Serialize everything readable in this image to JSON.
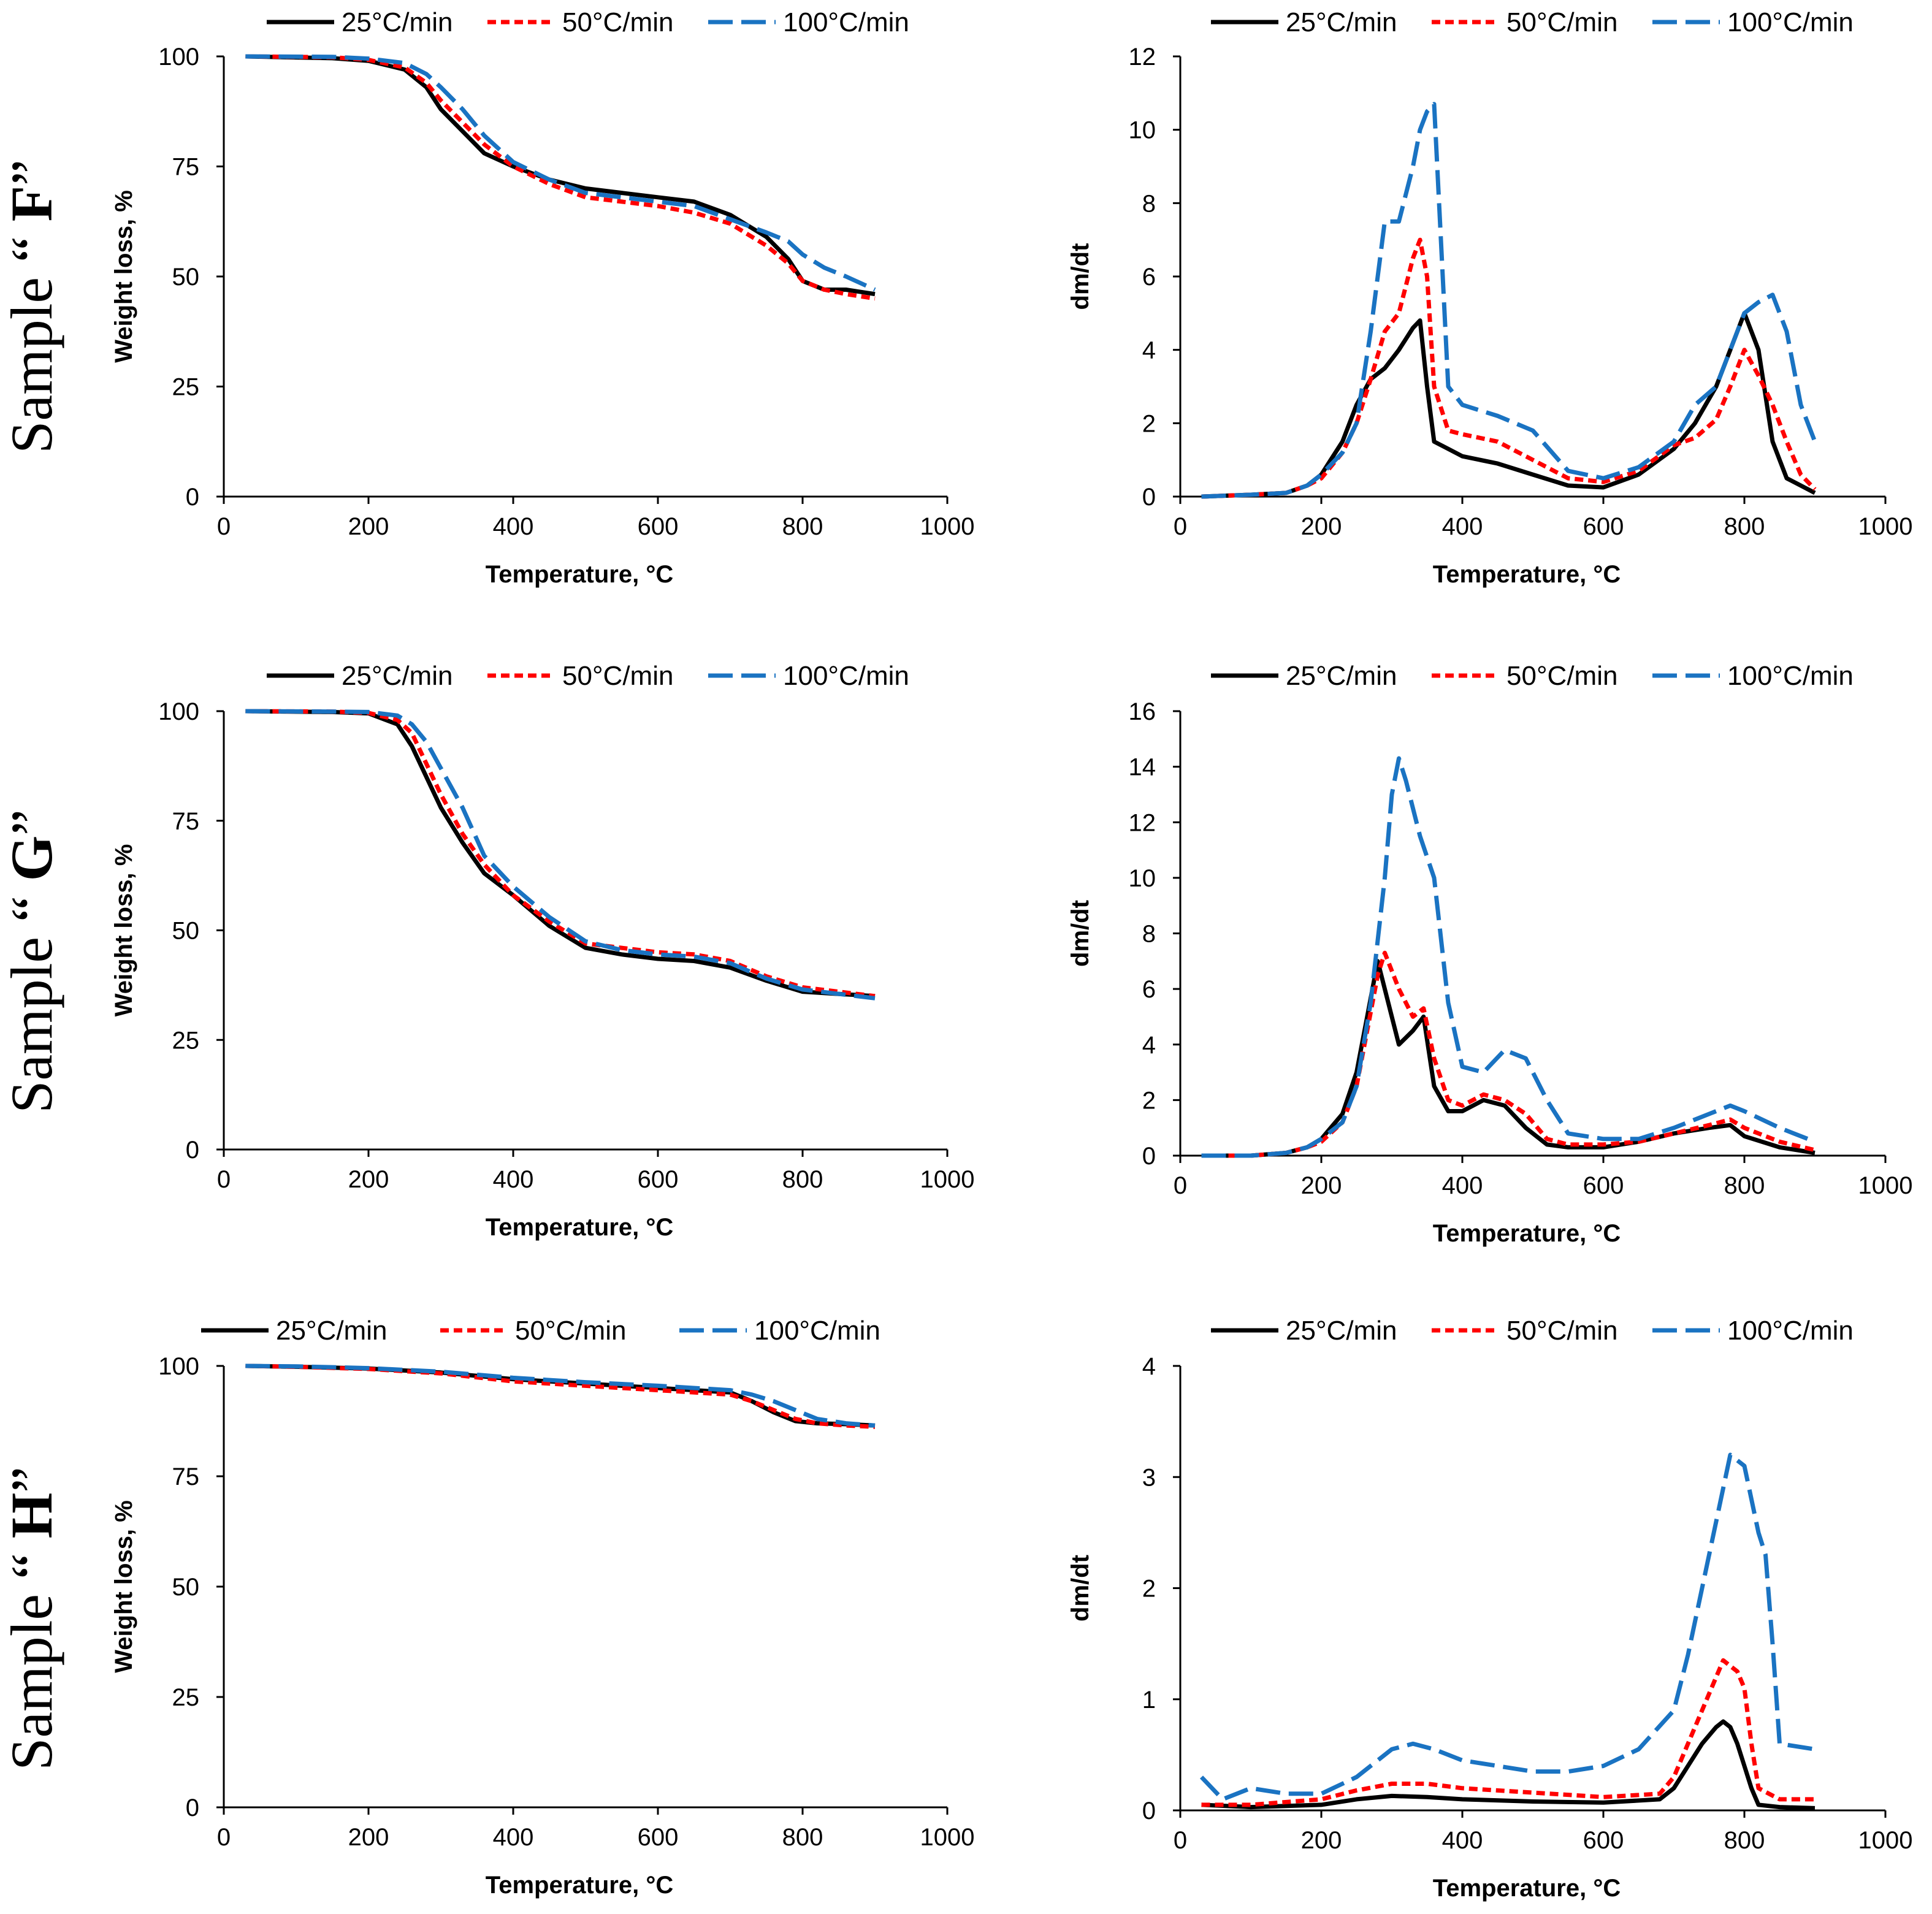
{
  "series_meta": [
    {
      "name": "25°C/min",
      "color": "#000000",
      "style": "solid"
    },
    {
      "name": "50°C/min",
      "color": "#ff0000",
      "style": "short-dash"
    },
    {
      "name": "100°C/min",
      "color": "#1a73c2",
      "style": "long-dash"
    }
  ],
  "rows": [
    {
      "sample_label_prefix": "Sample",
      "sample_label_quote": "“",
      "sample_letter": "F",
      "sample_label_suffix": "”"
    },
    {
      "sample_label_prefix": "Sample",
      "sample_label_quote": "“",
      "sample_letter": "G",
      "sample_label_suffix": "”"
    },
    {
      "sample_label_prefix": "Sample",
      "sample_label_quote": "“",
      "sample_letter": "H",
      "sample_label_suffix": "”"
    }
  ],
  "chart_data": [
    {
      "id": "F-tga",
      "type": "line",
      "title": "",
      "xlabel": "Temperature, °C",
      "ylabel": "Weight loss, %",
      "xlim": [
        0,
        1000
      ],
      "ylim": [
        0,
        100
      ],
      "xticks": [
        0,
        200,
        400,
        600,
        800,
        1000
      ],
      "yticks": [
        0,
        25,
        50,
        75,
        100
      ],
      "legend": "top",
      "series": [
        {
          "name": "25°C/min",
          "x": [
            30,
            150,
            200,
            250,
            280,
            300,
            330,
            360,
            400,
            450,
            500,
            550,
            600,
            650,
            700,
            750,
            780,
            800,
            830,
            860,
            900
          ],
          "y": [
            100,
            99.6,
            99,
            97,
            93,
            88,
            83,
            78,
            75,
            72,
            70,
            69,
            68,
            67,
            64,
            59,
            54,
            49,
            47,
            47,
            46
          ]
        },
        {
          "name": "50°C/min",
          "x": [
            30,
            150,
            200,
            250,
            280,
            300,
            330,
            360,
            400,
            450,
            500,
            550,
            600,
            650,
            700,
            750,
            780,
            800,
            830,
            860,
            900
          ],
          "y": [
            100,
            99.8,
            99.2,
            97.5,
            94,
            90,
            85,
            80,
            75,
            71,
            68,
            67,
            66,
            64.5,
            62,
            57,
            53,
            49,
            47,
            46,
            45
          ]
        },
        {
          "name": "100°C/min",
          "x": [
            30,
            150,
            200,
            250,
            280,
            300,
            330,
            360,
            400,
            450,
            500,
            550,
            600,
            650,
            700,
            750,
            780,
            800,
            830,
            860,
            900
          ],
          "y": [
            100,
            99.9,
            99.5,
            98.5,
            96,
            93,
            88,
            82,
            76,
            72,
            69,
            68,
            67,
            66,
            63,
            60,
            58,
            55,
            52,
            50,
            47
          ]
        }
      ]
    },
    {
      "id": "F-dtg",
      "type": "line",
      "title": "",
      "xlabel": "Temperature, °C",
      "ylabel": "dm/dt",
      "xlim": [
        0,
        1000
      ],
      "ylim": [
        0,
        12
      ],
      "xticks": [
        0,
        200,
        400,
        600,
        800,
        1000
      ],
      "yticks": [
        0,
        2,
        4,
        6,
        8,
        10,
        12
      ],
      "legend": "top",
      "series": [
        {
          "name": "25°C/min",
          "x": [
            30,
            100,
            150,
            180,
            200,
            230,
            250,
            270,
            290,
            310,
            330,
            340,
            350,
            360,
            380,
            400,
            450,
            500,
            550,
            600,
            650,
            700,
            730,
            760,
            780,
            800,
            820,
            840,
            860,
            880,
            900
          ],
          "y": [
            0,
            0.05,
            0.1,
            0.3,
            0.6,
            1.5,
            2.5,
            3.2,
            3.5,
            4,
            4.6,
            4.8,
            3,
            1.5,
            1.3,
            1.1,
            0.9,
            0.6,
            0.3,
            0.25,
            0.6,
            1.3,
            2,
            3,
            4,
            5,
            4,
            1.5,
            0.5,
            0.3,
            0.1
          ]
        },
        {
          "name": "50°C/min",
          "x": [
            30,
            100,
            150,
            180,
            200,
            230,
            250,
            270,
            290,
            310,
            330,
            340,
            350,
            360,
            380,
            400,
            450,
            500,
            550,
            600,
            650,
            700,
            730,
            760,
            780,
            800,
            820,
            840,
            860,
            880,
            900
          ],
          "y": [
            0,
            0.05,
            0.1,
            0.3,
            0.5,
            1.2,
            2,
            3.2,
            4.5,
            5,
            6.5,
            7,
            6,
            3,
            1.8,
            1.7,
            1.5,
            1,
            0.5,
            0.4,
            0.7,
            1.4,
            1.6,
            2.1,
            3,
            4,
            3.3,
            2.5,
            1.5,
            0.6,
            0.2
          ]
        },
        {
          "name": "100°C/min",
          "x": [
            30,
            100,
            150,
            180,
            200,
            230,
            250,
            270,
            290,
            310,
            330,
            340,
            350,
            360,
            380,
            400,
            450,
            500,
            550,
            600,
            650,
            700,
            730,
            760,
            780,
            800,
            820,
            840,
            860,
            880,
            900
          ],
          "y": [
            0,
            0.05,
            0.1,
            0.3,
            0.6,
            1.2,
            2,
            4.5,
            7.5,
            7.5,
            9,
            10,
            10.5,
            10.7,
            3,
            2.5,
            2.2,
            1.8,
            0.7,
            0.5,
            0.8,
            1.5,
            2.5,
            3,
            4,
            5,
            5.3,
            5.5,
            4.5,
            2.5,
            1.5
          ]
        }
      ]
    },
    {
      "id": "G-tga",
      "type": "line",
      "title": "",
      "xlabel": "Temperature, °C",
      "ylabel": "Weight loss, %",
      "xlim": [
        0,
        1000
      ],
      "ylim": [
        0,
        100
      ],
      "xticks": [
        0,
        200,
        400,
        600,
        800,
        1000
      ],
      "yticks": [
        0,
        25,
        50,
        75,
        100
      ],
      "legend": "top",
      "series": [
        {
          "name": "25°C/min",
          "x": [
            30,
            150,
            200,
            240,
            260,
            280,
            300,
            330,
            360,
            400,
            450,
            500,
            550,
            600,
            650,
            700,
            750,
            800,
            850,
            900
          ],
          "y": [
            100,
            99.8,
            99.5,
            97,
            92,
            85,
            78,
            70,
            63,
            58,
            51,
            46,
            44.5,
            43.5,
            43,
            41.5,
            38.5,
            36,
            35.5,
            35
          ]
        },
        {
          "name": "50°C/min",
          "x": [
            30,
            150,
            200,
            240,
            260,
            280,
            300,
            330,
            360,
            400,
            450,
            500,
            550,
            600,
            650,
            700,
            750,
            800,
            850,
            900
          ],
          "y": [
            100,
            99.9,
            99.6,
            98,
            95,
            88,
            81,
            72,
            65,
            58,
            52,
            47,
            46,
            45,
            44.5,
            43,
            39.5,
            37,
            36,
            35
          ]
        },
        {
          "name": "100°C/min",
          "x": [
            30,
            150,
            200,
            240,
            260,
            280,
            300,
            330,
            360,
            400,
            450,
            500,
            550,
            600,
            650,
            700,
            750,
            800,
            850,
            900
          ],
          "y": [
            100,
            99.9,
            99.8,
            99,
            97,
            93,
            87,
            78,
            67,
            60,
            53,
            47.5,
            45.5,
            44.5,
            44,
            42.5,
            39,
            36.5,
            35.5,
            34.5
          ]
        }
      ]
    },
    {
      "id": "G-dtg",
      "type": "line",
      "title": "",
      "xlabel": "Temperature, °C",
      "ylabel": "dm/dt",
      "xlim": [
        0,
        1000
      ],
      "ylim": [
        0,
        16
      ],
      "xticks": [
        0,
        200,
        400,
        600,
        800,
        1000
      ],
      "yticks": [
        0,
        2,
        4,
        6,
        8,
        10,
        12,
        14,
        16
      ],
      "legend": "top",
      "series": [
        {
          "name": "25°C/min",
          "x": [
            30,
            100,
            150,
            180,
            200,
            230,
            250,
            265,
            280,
            290,
            310,
            330,
            345,
            360,
            380,
            400,
            430,
            460,
            490,
            520,
            550,
            600,
            650,
            700,
            750,
            780,
            800,
            850,
            900
          ],
          "y": [
            0,
            0,
            0.1,
            0.3,
            0.6,
            1.5,
            3,
            5,
            7,
            6,
            4,
            4.5,
            5,
            2.5,
            1.6,
            1.6,
            2,
            1.8,
            1,
            0.4,
            0.3,
            0.3,
            0.5,
            0.8,
            1,
            1.1,
            0.7,
            0.3,
            0.1
          ]
        },
        {
          "name": "50°C/min",
          "x": [
            30,
            100,
            150,
            180,
            200,
            230,
            250,
            265,
            280,
            290,
            310,
            330,
            345,
            360,
            380,
            400,
            430,
            460,
            490,
            520,
            550,
            600,
            650,
            700,
            750,
            780,
            800,
            850,
            900
          ],
          "y": [
            0,
            0,
            0.1,
            0.3,
            0.5,
            1.2,
            2.5,
            4.5,
            6.5,
            7.3,
            6,
            5,
            5.3,
            3.5,
            2,
            1.8,
            2.2,
            2,
            1.5,
            0.6,
            0.4,
            0.4,
            0.5,
            0.8,
            1.1,
            1.3,
            1,
            0.5,
            0.2
          ]
        },
        {
          "name": "100°C/min",
          "x": [
            30,
            100,
            150,
            180,
            200,
            230,
            250,
            270,
            290,
            300,
            310,
            320,
            340,
            360,
            380,
            400,
            430,
            460,
            490,
            520,
            550,
            600,
            650,
            700,
            750,
            780,
            800,
            850,
            900
          ],
          "y": [
            0,
            0,
            0.1,
            0.3,
            0.6,
            1.2,
            2.5,
            5.5,
            10,
            13,
            14.3,
            13.5,
            11.5,
            10,
            5.5,
            3.2,
            3,
            3.8,
            3.5,
            2,
            0.8,
            0.6,
            0.6,
            1,
            1.5,
            1.8,
            1.6,
            1,
            0.5
          ]
        }
      ]
    },
    {
      "id": "H-tga",
      "type": "line",
      "title": "",
      "xlabel": "Temperature, °C",
      "ylabel": "Weight loss, %",
      "xlim": [
        0,
        1000
      ],
      "ylim": [
        0,
        100
      ],
      "xticks": [
        0,
        200,
        400,
        600,
        800,
        1000
      ],
      "yticks": [
        0,
        25,
        50,
        75,
        100
      ],
      "legend": "top",
      "series": [
        {
          "name": "25°C/min",
          "x": [
            30,
            100,
            200,
            300,
            400,
            500,
            600,
            700,
            730,
            760,
            790,
            820,
            860,
            900
          ],
          "y": [
            100,
            99.8,
            99.4,
            98.5,
            97,
            96,
            95,
            94,
            92,
            89.5,
            87.5,
            87,
            86.8,
            86.5
          ]
        },
        {
          "name": "50°C/min",
          "x": [
            30,
            100,
            200,
            300,
            400,
            500,
            600,
            700,
            730,
            760,
            790,
            820,
            860,
            900
          ],
          "y": [
            100,
            99.8,
            99.3,
            98.3,
            96.5,
            95.5,
            94.5,
            93.5,
            92,
            90,
            88,
            87,
            86.5,
            86.2
          ]
        },
        {
          "name": "100°C/min",
          "x": [
            30,
            100,
            200,
            300,
            400,
            500,
            600,
            700,
            730,
            760,
            790,
            820,
            860,
            900
          ],
          "y": [
            100,
            99.9,
            99.5,
            98.7,
            97.3,
            96.3,
            95.5,
            94.5,
            93.5,
            92,
            90,
            88,
            87,
            86.5
          ]
        }
      ]
    },
    {
      "id": "H-dtg",
      "type": "line",
      "title": "",
      "xlabel": "Temperature, °C",
      "ylabel": "dm/dt",
      "xlim": [
        0,
        1000
      ],
      "ylim": [
        0,
        4
      ],
      "xticks": [
        0,
        200,
        400,
        600,
        800,
        1000
      ],
      "yticks": [
        0,
        1,
        2,
        3,
        4
      ],
      "legend": "top",
      "series": [
        {
          "name": "25°C/min",
          "x": [
            30,
            100,
            200,
            250,
            300,
            350,
            400,
            500,
            600,
            680,
            700,
            720,
            740,
            760,
            770,
            780,
            790,
            800,
            810,
            820,
            850,
            900
          ],
          "y": [
            0.05,
            0.03,
            0.05,
            0.1,
            0.13,
            0.12,
            0.1,
            0.08,
            0.07,
            0.1,
            0.2,
            0.4,
            0.6,
            0.75,
            0.8,
            0.75,
            0.6,
            0.4,
            0.2,
            0.05,
            0.03,
            0.02
          ]
        },
        {
          "name": "50°C/min",
          "x": [
            30,
            100,
            200,
            250,
            300,
            350,
            400,
            500,
            600,
            680,
            700,
            720,
            740,
            760,
            770,
            780,
            790,
            800,
            810,
            820,
            850,
            900
          ],
          "y": [
            0.05,
            0.05,
            0.1,
            0.18,
            0.24,
            0.24,
            0.2,
            0.16,
            0.12,
            0.15,
            0.3,
            0.6,
            0.9,
            1.2,
            1.35,
            1.3,
            1.25,
            1.1,
            0.6,
            0.2,
            0.1,
            0.1
          ]
        },
        {
          "name": "100°C/min",
          "x": [
            30,
            60,
            100,
            150,
            200,
            250,
            300,
            330,
            360,
            400,
            450,
            500,
            550,
            600,
            650,
            700,
            720,
            740,
            760,
            780,
            800,
            820,
            830,
            840,
            850,
            900
          ],
          "y": [
            0.3,
            0.1,
            0.2,
            0.15,
            0.15,
            0.3,
            0.55,
            0.6,
            0.55,
            0.45,
            0.4,
            0.35,
            0.35,
            0.4,
            0.55,
            0.9,
            1.4,
            2,
            2.6,
            3.2,
            3.1,
            2.5,
            2.3,
            1.5,
            0.6,
            0.55
          ]
        }
      ]
    }
  ]
}
